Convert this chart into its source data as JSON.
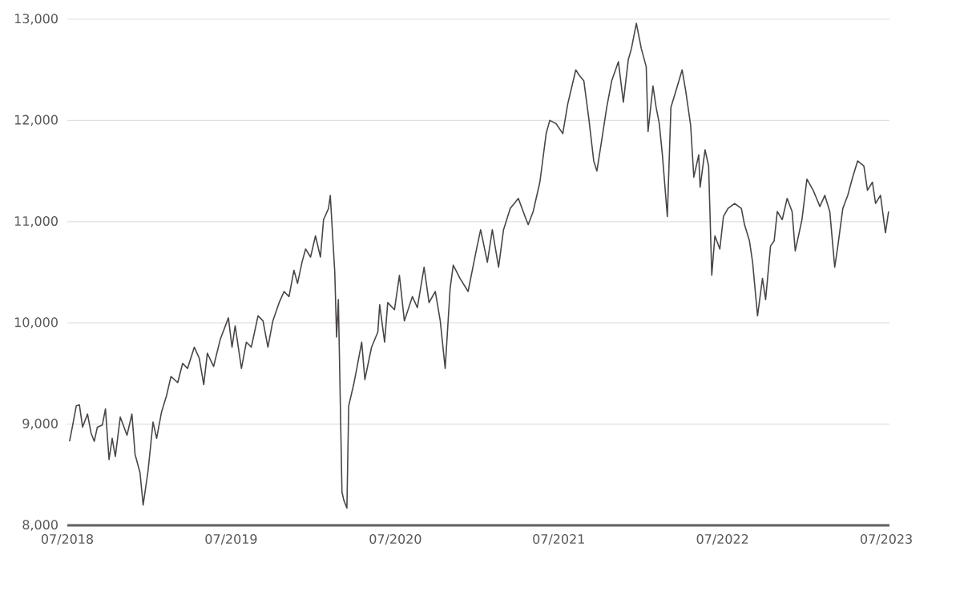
{
  "chart_data": {
    "type": "line",
    "x": [
      "2018-07-06",
      "2018-07-13",
      "2018-07-21",
      "2018-07-28",
      "2018-08-04",
      "2018-08-15",
      "2018-08-23",
      "2018-08-30",
      "2018-09-06",
      "2018-09-17",
      "2018-09-24",
      "2018-10-02",
      "2018-10-09",
      "2018-10-16",
      "2018-10-27",
      "2018-11-11",
      "2018-11-22",
      "2018-11-29",
      "2018-12-10",
      "2018-12-17",
      "2018-12-28",
      "2019-01-08",
      "2019-01-16",
      "2019-01-27",
      "2019-02-07",
      "2019-02-17",
      "2019-03-04",
      "2019-03-15",
      "2019-03-26",
      "2019-04-10",
      "2019-04-21",
      "2019-05-01",
      "2019-05-09",
      "2019-05-23",
      "2019-06-07",
      "2019-06-25",
      "2019-07-03",
      "2019-07-10",
      "2019-07-24",
      "2019-08-04",
      "2019-08-15",
      "2019-08-30",
      "2019-09-10",
      "2019-09-21",
      "2019-10-02",
      "2019-10-16",
      "2019-10-27",
      "2019-11-07",
      "2019-11-18",
      "2019-11-26",
      "2019-12-06",
      "2019-12-14",
      "2019-12-25",
      "2020-01-05",
      "2020-01-16",
      "2020-01-23",
      "2020-02-03",
      "2020-02-07",
      "2020-02-17",
      "2020-02-21",
      "2020-02-25",
      "2020-03-04",
      "2020-03-08",
      "2020-03-15",
      "2020-03-19",
      "2020-03-30",
      "2020-04-06",
      "2020-04-17",
      "2020-04-24",
      "2020-05-09",
      "2020-05-23",
      "2020-05-27",
      "2020-06-07",
      "2020-06-14",
      "2020-06-29",
      "2020-07-10",
      "2020-07-21",
      "2020-08-08",
      "2020-08-19",
      "2020-09-03",
      "2020-09-14",
      "2020-09-28",
      "2020-10-09",
      "2020-10-20",
      "2020-10-31",
      "2020-11-07",
      "2020-11-22",
      "2020-12-06",
      "2020-12-10",
      "2020-12-28",
      "2021-01-08",
      "2021-01-23",
      "2021-02-03",
      "2021-02-17",
      "2021-02-28",
      "2021-03-15",
      "2021-04-02",
      "2021-04-17",
      "2021-04-24",
      "2021-05-05",
      "2021-05-20",
      "2021-06-03",
      "2021-06-11",
      "2021-06-25",
      "2021-07-10",
      "2021-07-21",
      "2021-08-08",
      "2021-08-15",
      "2021-08-26",
      "2021-09-06",
      "2021-09-17",
      "2021-09-24",
      "2021-10-05",
      "2021-10-16",
      "2021-10-27",
      "2021-11-11",
      "2021-11-22",
      "2021-12-03",
      "2021-12-10",
      "2021-12-21",
      "2022-01-01",
      "2022-01-12",
      "2022-01-16",
      "2022-01-27",
      "2022-02-03",
      "2022-02-10",
      "2022-02-17",
      "2022-02-28",
      "2022-03-08",
      "2022-03-19",
      "2022-04-02",
      "2022-04-10",
      "2022-04-21",
      "2022-04-28",
      "2022-05-09",
      "2022-05-12",
      "2022-05-23",
      "2022-05-31",
      "2022-06-07",
      "2022-06-14",
      "2022-06-25",
      "2022-07-03",
      "2022-07-13",
      "2022-07-28",
      "2022-08-12",
      "2022-08-19",
      "2022-08-30",
      "2022-09-06",
      "2022-09-17",
      "2022-09-28",
      "2022-10-05",
      "2022-10-16",
      "2022-10-24",
      "2022-10-31",
      "2022-11-11",
      "2022-11-22",
      "2022-12-03",
      "2022-12-10",
      "2022-12-25",
      "2023-01-05",
      "2023-01-19",
      "2023-02-03",
      "2023-02-14",
      "2023-02-25",
      "2023-03-08",
      "2023-03-15",
      "2023-03-26",
      "2023-04-06",
      "2023-04-17",
      "2023-04-28",
      "2023-05-12",
      "2023-05-20",
      "2023-05-31",
      "2023-06-07",
      "2023-06-18",
      "2023-06-29",
      "2023-07-06"
    ],
    "series": [
      {
        "color": "#4a4646",
        "values": [
          8830,
          8990,
          9180,
          9190,
          8970,
          9100,
          8910,
          8830,
          8970,
          8990,
          9150,
          8650,
          8860,
          8680,
          9070,
          8890,
          9100,
          8700,
          8520,
          8200,
          8540,
          9020,
          8860,
          9120,
          9280,
          9470,
          9410,
          9600,
          9550,
          9760,
          9650,
          9390,
          9700,
          9570,
          9840,
          10050,
          9760,
          9970,
          9550,
          9810,
          9760,
          10070,
          10020,
          9760,
          10020,
          10200,
          10310,
          10260,
          10520,
          10390,
          10600,
          10730,
          10650,
          10860,
          10650,
          11020,
          11130,
          11260,
          10500,
          9860,
          10230,
          8330,
          8250,
          8170,
          9180,
          9390,
          9550,
          9810,
          9440,
          9760,
          9910,
          10180,
          9810,
          10200,
          10130,
          10470,
          10020,
          10260,
          10150,
          10550,
          10200,
          10310,
          10020,
          9550,
          10340,
          10570,
          10440,
          10340,
          10310,
          10710,
          10920,
          10600,
          10920,
          10550,
          10920,
          11130,
          11230,
          11050,
          10970,
          11100,
          11390,
          11870,
          12000,
          11970,
          11870,
          12160,
          12500,
          12450,
          12390,
          12020,
          11600,
          11500,
          11810,
          12130,
          12390,
          12580,
          12180,
          12600,
          12710,
          12960,
          12710,
          12530,
          11890,
          12340,
          12130,
          11970,
          11660,
          11050,
          12130,
          12290,
          12500,
          12290,
          11950,
          11440,
          11660,
          11340,
          11710,
          11550,
          10470,
          10860,
          10730,
          11050,
          11130,
          11180,
          11130,
          10970,
          10810,
          10600,
          10070,
          10440,
          10230,
          10760,
          10810,
          11100,
          11020,
          11230,
          11100,
          10710,
          11020,
          11420,
          11310,
          11150,
          11260,
          11100,
          10550,
          10760,
          11130,
          11260,
          11440,
          11600,
          11550,
          11310,
          11390,
          11180,
          11260,
          10890,
          11100
        ]
      }
    ],
    "xlim": [
      "2018-07-01",
      "2023-07-08"
    ],
    "xticks": [
      {
        "value": "2018-07-01",
        "label": "07/2018"
      },
      {
        "value": "2019-07-01",
        "label": "07/2019"
      },
      {
        "value": "2020-07-01",
        "label": "07/2020"
      },
      {
        "value": "2021-07-01",
        "label": "07/2021"
      },
      {
        "value": "2022-07-01",
        "label": "07/2022"
      },
      {
        "value": "2023-07-01",
        "label": "07/2023"
      }
    ],
    "ylim": [
      8000,
      13000
    ],
    "yticks": [
      {
        "value": 8000,
        "label": "8,000"
      },
      {
        "value": 9000,
        "label": "9,000"
      },
      {
        "value": 10000,
        "label": "10,000"
      },
      {
        "value": 11000,
        "label": "11,000"
      },
      {
        "value": 12000,
        "label": "12,000"
      },
      {
        "value": 13000,
        "label": "13,000"
      }
    ],
    "grid": "y"
  }
}
